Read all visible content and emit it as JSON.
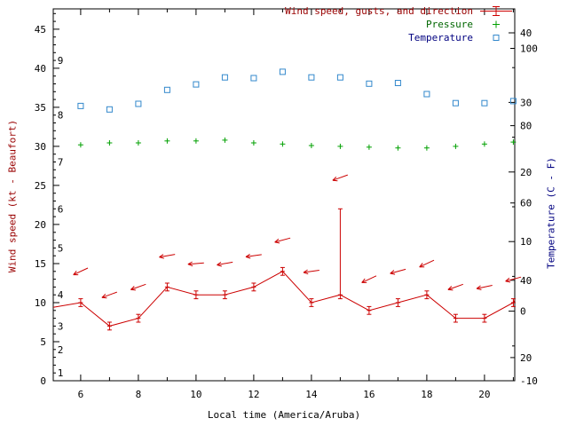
{
  "legend": {
    "wind_label": "Wind speed, gusts, and direction",
    "pressure_label": "Pressure",
    "temperature_label": "Temperature"
  },
  "axis_titles": {
    "left": "Wind speed (kt - Beaufort)",
    "right": "Temperature (C - F)",
    "bottom": "Local time (America/Aruba)"
  },
  "colors": {
    "wind": "#cc0000",
    "wind_text": "#990000",
    "pressure": "#00a000",
    "pressure_text": "#006600",
    "temperature": "#3388cc",
    "temperature_text": "#000080",
    "axis": "#000000",
    "background": "#ffffff"
  },
  "chart_data": {
    "type": "line",
    "title": "",
    "xlabel": "Local time (America/Aruba)",
    "ylabel_left": "Wind speed (kt - Beaufort)",
    "ylabel_right": "Temperature (C - F)",
    "grid": false,
    "legend_position": "top-right-inside",
    "x_range_hours": [
      5.05,
      21.05
    ],
    "x_major_tick_hours": [
      6,
      8,
      10,
      12,
      14,
      16,
      18,
      20
    ],
    "x_minor_every_hour": true,
    "wind_axis_kt": {
      "range": [
        0,
        47.6
      ],
      "major_ticks": [
        0,
        5,
        10,
        15,
        20,
        25,
        30,
        35,
        40,
        45
      ]
    },
    "beaufort_scale": {
      "labels": [
        1,
        2,
        3,
        4,
        5,
        6,
        7,
        8,
        9
      ],
      "boundary_kt": [
        1,
        4,
        7,
        11,
        17,
        22,
        28,
        34,
        41
      ]
    },
    "temp_axis": {
      "range_c": [
        -10,
        43.45
      ],
      "ticks_c": [
        -10,
        0,
        10,
        20,
        30,
        40
      ],
      "ticks_f": [
        20,
        40,
        60,
        80,
        100
      ]
    },
    "hours": [
      6,
      7,
      8,
      9,
      10,
      11,
      12,
      13,
      14,
      15,
      16,
      17,
      18,
      19,
      20,
      21
    ],
    "wind_speed_kt": [
      10,
      7,
      8,
      12,
      11,
      11,
      12,
      14,
      10,
      11,
      9,
      10,
      11,
      8,
      8,
      10
    ],
    "gust_low_kt": [
      9.5,
      6.5,
      7.5,
      11.5,
      10.5,
      10.5,
      11.5,
      13.5,
      9.5,
      10.5,
      8.5,
      9.5,
      10.5,
      7.5,
      7.5,
      9.5
    ],
    "gust_high_kt": [
      10.5,
      7.5,
      8.5,
      12.5,
      11.5,
      11.5,
      12.5,
      14.5,
      10.5,
      22,
      9.5,
      10.5,
      11.5,
      8.5,
      8.5,
      10.5
    ],
    "wind_edge_points": [
      {
        "hour": 5.05,
        "kt": 9.4
      },
      {
        "hour": 21.05,
        "kt": 10.3
      }
    ],
    "direction_arrows": {
      "kt": [
        14,
        11,
        12,
        16,
        15,
        15,
        16,
        18,
        14,
        26,
        13,
        14,
        15,
        12,
        12,
        13
      ],
      "tilt_deg": [
        25,
        20,
        20,
        10,
        5,
        10,
        8,
        15,
        8,
        20,
        25,
        15,
        25,
        20,
        12,
        15
      ]
    },
    "pressure_left_axis_units": [
      30.2,
      30.45,
      30.45,
      30.7,
      30.7,
      30.8,
      30.45,
      30.3,
      30.1,
      30.0,
      29.9,
      29.8,
      29.8,
      30.0,
      30.3,
      30.55
    ],
    "temperature_c": [
      29.5,
      29.0,
      29.8,
      31.8,
      32.6,
      33.6,
      33.5,
      34.4,
      33.6,
      33.6,
      32.7,
      32.8,
      31.2,
      29.9,
      29.9,
      30.2
    ]
  }
}
